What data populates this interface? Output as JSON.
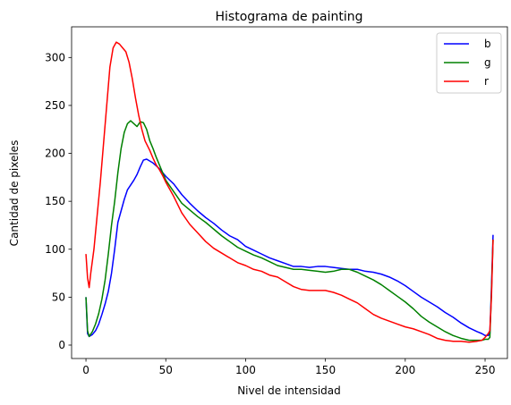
{
  "chart_data": {
    "type": "line",
    "title": "Histograma de painting",
    "xlabel": "Nivel de intensidad",
    "ylabel": "Cantidad de pixeles",
    "xlim": [
      -9,
      264
    ],
    "ylim": [
      -14,
      332
    ],
    "xticks": [
      0,
      50,
      100,
      150,
      200,
      250
    ],
    "yticks": [
      0,
      50,
      100,
      150,
      200,
      250,
      300
    ],
    "grid": false,
    "legend_position": "top-right",
    "series": [
      {
        "name": "b",
        "color": "#0000ff",
        "points": [
          [
            0,
            50
          ],
          [
            1,
            12
          ],
          [
            2,
            9
          ],
          [
            4,
            11
          ],
          [
            6,
            15
          ],
          [
            8,
            22
          ],
          [
            10,
            32
          ],
          [
            12,
            43
          ],
          [
            14,
            56
          ],
          [
            16,
            75
          ],
          [
            18,
            100
          ],
          [
            20,
            128
          ],
          [
            22,
            140
          ],
          [
            24,
            152
          ],
          [
            26,
            162
          ],
          [
            28,
            167
          ],
          [
            30,
            172
          ],
          [
            32,
            178
          ],
          [
            34,
            186
          ],
          [
            36,
            193
          ],
          [
            38,
            194
          ],
          [
            40,
            192
          ],
          [
            42,
            190
          ],
          [
            44,
            187
          ],
          [
            46,
            184
          ],
          [
            48,
            180
          ],
          [
            50,
            176
          ],
          [
            55,
            168
          ],
          [
            60,
            157
          ],
          [
            65,
            148
          ],
          [
            70,
            140
          ],
          [
            75,
            133
          ],
          [
            80,
            127
          ],
          [
            85,
            120
          ],
          [
            90,
            114
          ],
          [
            95,
            110
          ],
          [
            100,
            103
          ],
          [
            105,
            99
          ],
          [
            110,
            95
          ],
          [
            115,
            91
          ],
          [
            120,
            88
          ],
          [
            125,
            85
          ],
          [
            130,
            82
          ],
          [
            135,
            82
          ],
          [
            140,
            81
          ],
          [
            145,
            82
          ],
          [
            150,
            82
          ],
          [
            155,
            81
          ],
          [
            160,
            80
          ],
          [
            165,
            79
          ],
          [
            170,
            79
          ],
          [
            175,
            77
          ],
          [
            180,
            76
          ],
          [
            185,
            74
          ],
          [
            190,
            71
          ],
          [
            195,
            67
          ],
          [
            200,
            62
          ],
          [
            205,
            56
          ],
          [
            210,
            50
          ],
          [
            215,
            45
          ],
          [
            220,
            40
          ],
          [
            225,
            34
          ],
          [
            230,
            29
          ],
          [
            235,
            23
          ],
          [
            240,
            18
          ],
          [
            245,
            14
          ],
          [
            248,
            12
          ],
          [
            250,
            10
          ],
          [
            252,
            10
          ],
          [
            253,
            12
          ],
          [
            254,
            60
          ],
          [
            255,
            115
          ]
        ]
      },
      {
        "name": "g",
        "color": "#008000",
        "points": [
          [
            0,
            50
          ],
          [
            1,
            15
          ],
          [
            2,
            9
          ],
          [
            4,
            14
          ],
          [
            6,
            22
          ],
          [
            8,
            33
          ],
          [
            10,
            48
          ],
          [
            12,
            68
          ],
          [
            14,
            95
          ],
          [
            16,
            125
          ],
          [
            18,
            150
          ],
          [
            20,
            180
          ],
          [
            22,
            205
          ],
          [
            24,
            222
          ],
          [
            26,
            231
          ],
          [
            28,
            234
          ],
          [
            30,
            231
          ],
          [
            32,
            228
          ],
          [
            34,
            233
          ],
          [
            36,
            232
          ],
          [
            38,
            225
          ],
          [
            40,
            213
          ],
          [
            42,
            205
          ],
          [
            44,
            196
          ],
          [
            46,
            188
          ],
          [
            48,
            180
          ],
          [
            50,
            172
          ],
          [
            55,
            160
          ],
          [
            60,
            148
          ],
          [
            65,
            141
          ],
          [
            70,
            134
          ],
          [
            75,
            128
          ],
          [
            80,
            121
          ],
          [
            85,
            114
          ],
          [
            90,
            108
          ],
          [
            95,
            102
          ],
          [
            100,
            98
          ],
          [
            105,
            94
          ],
          [
            110,
            91
          ],
          [
            115,
            87
          ],
          [
            120,
            83
          ],
          [
            125,
            81
          ],
          [
            130,
            79
          ],
          [
            135,
            79
          ],
          [
            140,
            78
          ],
          [
            145,
            77
          ],
          [
            150,
            76
          ],
          [
            155,
            77
          ],
          [
            160,
            79
          ],
          [
            165,
            79
          ],
          [
            170,
            76
          ],
          [
            175,
            72
          ],
          [
            180,
            68
          ],
          [
            185,
            63
          ],
          [
            190,
            57
          ],
          [
            195,
            51
          ],
          [
            200,
            45
          ],
          [
            205,
            38
          ],
          [
            210,
            30
          ],
          [
            215,
            24
          ],
          [
            220,
            19
          ],
          [
            225,
            14
          ],
          [
            230,
            10
          ],
          [
            235,
            7
          ],
          [
            240,
            5
          ],
          [
            245,
            5
          ],
          [
            248,
            5
          ],
          [
            250,
            6
          ],
          [
            252,
            6
          ],
          [
            253,
            8
          ],
          [
            254,
            55
          ],
          [
            255,
            110
          ]
        ]
      },
      {
        "name": "r",
        "color": "#ff0000",
        "points": [
          [
            0,
            95
          ],
          [
            1,
            70
          ],
          [
            2,
            60
          ],
          [
            3,
            75
          ],
          [
            5,
            100
          ],
          [
            7,
            135
          ],
          [
            9,
            170
          ],
          [
            11,
            210
          ],
          [
            13,
            250
          ],
          [
            15,
            290
          ],
          [
            17,
            310
          ],
          [
            19,
            316
          ],
          [
            21,
            314
          ],
          [
            23,
            310
          ],
          [
            25,
            306
          ],
          [
            27,
            295
          ],
          [
            29,
            278
          ],
          [
            31,
            258
          ],
          [
            33,
            240
          ],
          [
            35,
            225
          ],
          [
            37,
            213
          ],
          [
            40,
            203
          ],
          [
            42,
            195
          ],
          [
            44,
            188
          ],
          [
            46,
            183
          ],
          [
            48,
            177
          ],
          [
            50,
            170
          ],
          [
            55,
            155
          ],
          [
            60,
            138
          ],
          [
            65,
            126
          ],
          [
            70,
            117
          ],
          [
            75,
            108
          ],
          [
            80,
            101
          ],
          [
            85,
            96
          ],
          [
            90,
            91
          ],
          [
            95,
            86
          ],
          [
            100,
            83
          ],
          [
            105,
            79
          ],
          [
            110,
            77
          ],
          [
            115,
            73
          ],
          [
            120,
            71
          ],
          [
            125,
            66
          ],
          [
            130,
            61
          ],
          [
            135,
            58
          ],
          [
            140,
            57
          ],
          [
            145,
            57
          ],
          [
            150,
            57
          ],
          [
            155,
            55
          ],
          [
            160,
            52
          ],
          [
            165,
            48
          ],
          [
            170,
            44
          ],
          [
            175,
            38
          ],
          [
            180,
            32
          ],
          [
            185,
            28
          ],
          [
            190,
            25
          ],
          [
            195,
            22
          ],
          [
            200,
            19
          ],
          [
            205,
            17
          ],
          [
            210,
            14
          ],
          [
            215,
            11
          ],
          [
            220,
            7
          ],
          [
            225,
            5
          ],
          [
            230,
            4
          ],
          [
            235,
            4
          ],
          [
            240,
            3
          ],
          [
            245,
            4
          ],
          [
            248,
            5
          ],
          [
            250,
            8
          ],
          [
            252,
            12
          ],
          [
            253,
            15
          ],
          [
            254,
            50
          ],
          [
            255,
            110
          ]
        ]
      }
    ]
  }
}
